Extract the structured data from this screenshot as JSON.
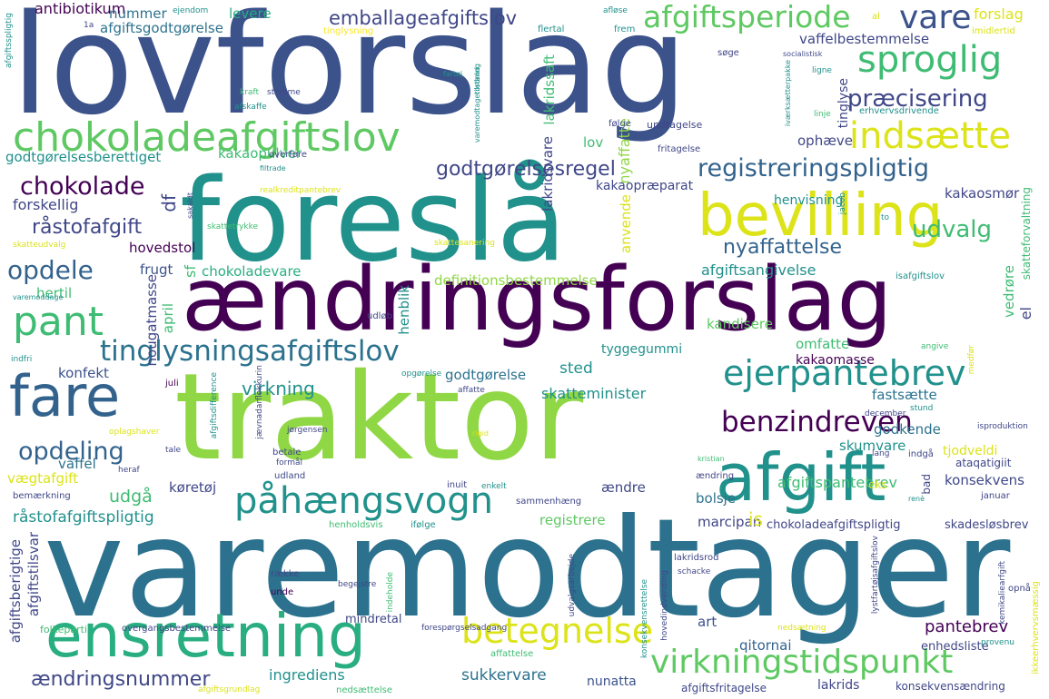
{
  "palette": {
    "dark_purple": "#440154",
    "indigo": "#3b528b",
    "navy": "#404788",
    "blue": "#33638d",
    "steel": "#2c728e",
    "teal": "#21918c",
    "sea": "#28ae80",
    "green": "#3fbc73",
    "light_green": "#5ec962",
    "lime": "#8fd744",
    "yellow_green": "#b8de29",
    "yellow": "#dce319",
    "bright_yellow": "#fde725"
  },
  "words": [
    {
      "text": "lovforslag",
      "color": "#3b528b"
    },
    {
      "text": "foreslå",
      "color": "#21918c"
    },
    {
      "text": "ændringsforslag",
      "color": "#440154"
    },
    {
      "text": "traktor",
      "color": "#8fd744"
    },
    {
      "text": "varemodtager",
      "color": "#2c728e"
    },
    {
      "text": "bevilling",
      "color": "#dce319"
    },
    {
      "text": "afgift",
      "color": "#21918c"
    },
    {
      "text": "ensretning",
      "color": "#28ae80"
    },
    {
      "text": "chokoladeafgiftslov",
      "color": "#5ec962"
    },
    {
      "text": "fare",
      "color": "#33638d"
    },
    {
      "text": "ejerpantebrev",
      "color": "#21918c"
    },
    {
      "text": "påhængsvogn",
      "color": "#21918c"
    },
    {
      "text": "betegnelse",
      "color": "#dce319"
    },
    {
      "text": "virkningstidspunkt",
      "color": "#5ec962"
    },
    {
      "text": "sproglig",
      "color": "#3fbc73"
    },
    {
      "text": "indsætte",
      "color": "#dce319"
    },
    {
      "text": "pant",
      "color": "#3fbc73"
    },
    {
      "text": "tinglysningsafgiftslov",
      "color": "#2c728e"
    },
    {
      "text": "benzindreven",
      "color": "#440154"
    },
    {
      "text": "vare",
      "color": "#3b528b"
    },
    {
      "text": "afgiftsperiode",
      "color": "#5ec962"
    },
    {
      "text": "registreringspligtig",
      "color": "#33638d"
    },
    {
      "text": "præcisering",
      "color": "#404788"
    },
    {
      "text": "emballageafgiftslov",
      "color": "#404788"
    },
    {
      "text": "opdele",
      "color": "#33638d"
    },
    {
      "text": "opdeling",
      "color": "#33638d"
    },
    {
      "text": "chokolade",
      "color": "#440154"
    },
    {
      "text": "godtgørelsesregel",
      "color": "#404788"
    },
    {
      "text": "udvalg",
      "color": "#3fbc73"
    },
    {
      "text": "ændringsnummer",
      "color": "#404788"
    },
    {
      "text": "nyaffattelse",
      "color": "#33638d"
    },
    {
      "text": "råstofafgift",
      "color": "#404788"
    },
    {
      "text": "forslag",
      "color": "#dce319"
    },
    {
      "text": "antibiotikum",
      "color": "#440154"
    },
    {
      "text": "nummer",
      "color": "#2c728e"
    },
    {
      "text": "afgiftsgodtgørelse",
      "color": "#2c728e"
    },
    {
      "text": "levere",
      "color": "#28ae80"
    },
    {
      "text": "vaffelbestemmelse",
      "color": "#404788"
    },
    {
      "text": "godtgørelsesberettiget",
      "color": "#21918c"
    },
    {
      "text": "kakaopulver",
      "color": "#3fbc73"
    },
    {
      "text": "forskellig",
      "color": "#404788"
    },
    {
      "text": "hovedstol",
      "color": "#440154"
    },
    {
      "text": "kakaopræparat",
      "color": "#404788"
    },
    {
      "text": "henvisning",
      "color": "#21918c"
    },
    {
      "text": "kakaosmør",
      "color": "#404788"
    },
    {
      "text": "afgiftsangivelse",
      "color": "#21918c"
    },
    {
      "text": "chokoladevare",
      "color": "#28ae80"
    },
    {
      "text": "definitionsbestemmelse",
      "color": "#8fd744"
    },
    {
      "text": "hertil",
      "color": "#3fbc73"
    },
    {
      "text": "frugt",
      "color": "#3b528b"
    },
    {
      "text": "kandisere",
      "color": "#5ec962"
    },
    {
      "text": "omfatte",
      "color": "#3fbc73"
    },
    {
      "text": "kakaomasse",
      "color": "#440154"
    },
    {
      "text": "konfekt",
      "color": "#3b528b"
    },
    {
      "text": "virkning",
      "color": "#21918c"
    },
    {
      "text": "sted",
      "color": "#21918c"
    },
    {
      "text": "skatteminister",
      "color": "#21918c"
    },
    {
      "text": "godtgørelse",
      "color": "#2c728e"
    },
    {
      "text": "tyggegummi",
      "color": "#21918c"
    },
    {
      "text": "fastsætte",
      "color": "#2c728e"
    },
    {
      "text": "godkende",
      "color": "#2c728e"
    },
    {
      "text": "tjodveldi",
      "color": "#dce319"
    },
    {
      "text": "vaffel",
      "color": "#2c728e"
    },
    {
      "text": "vægtafgift",
      "color": "#dce319"
    },
    {
      "text": "udgå",
      "color": "#3fbc73"
    },
    {
      "text": "køretøj",
      "color": "#404788"
    },
    {
      "text": "ændre",
      "color": "#404788"
    },
    {
      "text": "afgiftspantebrev",
      "color": "#3fbc73"
    },
    {
      "text": "bolsje",
      "color": "#2c728e"
    },
    {
      "text": "konsekvens",
      "color": "#404788"
    },
    {
      "text": "skumvare",
      "color": "#21918c"
    },
    {
      "text": "registrere",
      "color": "#5ec962"
    },
    {
      "text": "marcipan",
      "color": "#404788"
    },
    {
      "text": "chokoladeafgiftspligtig",
      "color": "#404788"
    },
    {
      "text": "skadesløsbrev",
      "color": "#404788"
    },
    {
      "text": "råstofafgiftspligtig",
      "color": "#21918c"
    },
    {
      "text": "is",
      "color": "#dce319"
    },
    {
      "text": "pantebrev",
      "color": "#440154"
    },
    {
      "text": "art",
      "color": "#3b528b"
    },
    {
      "text": "qitornai",
      "color": "#33638d"
    },
    {
      "text": "enhedsliste",
      "color": "#404788"
    },
    {
      "text": "sukkervare",
      "color": "#2c728e"
    },
    {
      "text": "nunatta",
      "color": "#3b528b"
    },
    {
      "text": "ingrediens",
      "color": "#21918c"
    },
    {
      "text": "lakrids",
      "color": "#404788"
    },
    {
      "text": "konsekvensændring",
      "color": "#404788"
    },
    {
      "text": "afgiftsfritagelse",
      "color": "#404788"
    },
    {
      "text": "mindretal",
      "color": "#404788"
    },
    {
      "text": "lov",
      "color": "#3fbc73"
    },
    {
      "text": "ophæve",
      "color": "#404788"
    },
    {
      "text": "lakridsvare",
      "color": "#404788"
    },
    {
      "text": "nyaffatte",
      "color": "#8fd744"
    },
    {
      "text": "lakridssaft",
      "color": "#3fbc73"
    },
    {
      "text": "tinglyse",
      "color": "#404788"
    },
    {
      "text": "anvende",
      "color": "#dce319"
    },
    {
      "text": "henblik",
      "color": "#21918c"
    },
    {
      "text": "nougatmasse",
      "color": "#404788"
    },
    {
      "text": "april",
      "color": "#3fbc73"
    },
    {
      "text": "df",
      "color": "#404788"
    },
    {
      "text": "sf",
      "color": "#3fbc73"
    },
    {
      "text": "afgiftstilsvar",
      "color": "#404788"
    },
    {
      "text": "afgiftsberigtige",
      "color": "#404788"
    },
    {
      "text": "vedrøre",
      "color": "#3fbc73"
    },
    {
      "text": "el",
      "color": "#404788"
    },
    {
      "text": "skatteforvaltning",
      "color": "#3fbc73"
    },
    {
      "text": "ejendom",
      "color": "#21918c"
    },
    {
      "text": "afløse",
      "color": "#21918c"
    },
    {
      "text": "al",
      "color": "#dce319"
    },
    {
      "text": "imidlertid",
      "color": "#dce319"
    },
    {
      "text": "tinglysning",
      "color": "#fde725"
    },
    {
      "text": "flertal",
      "color": "#21918c"
    },
    {
      "text": "frem",
      "color": "#21918c"
    },
    {
      "text": "søge",
      "color": "#404788"
    },
    {
      "text": "socialistisk",
      "color": "#404788"
    },
    {
      "text": "ligne",
      "color": "#21918c"
    },
    {
      "text": "kraft",
      "color": "#3fbc73"
    },
    {
      "text": "stemme",
      "color": "#404788"
    },
    {
      "text": "afskaffe",
      "color": "#21918c"
    },
    {
      "text": "følge",
      "color": "#404788"
    },
    {
      "text": "undtagelse",
      "color": "#404788"
    },
    {
      "text": "erhvervsdrivende",
      "color": "#21918c"
    },
    {
      "text": "linje",
      "color": "#3fbc73"
    },
    {
      "text": "fritagelse",
      "color": "#404788"
    },
    {
      "text": "overføre",
      "color": "#404788"
    },
    {
      "text": "filtrade",
      "color": "#21918c"
    },
    {
      "text": "realkreditpantebrev",
      "color": "#dce319"
    },
    {
      "text": "sakaldt",
      "color": "#404788"
    },
    {
      "text": "skattetrykke",
      "color": "#404788"
    },
    {
      "text": "fremgå",
      "color": "#3fbc73"
    },
    {
      "text": "skattesager",
      "color": "#404788"
    },
    {
      "text": "skattesanering",
      "color": "#dce319"
    },
    {
      "text": "skatteudvalg",
      "color": "#dce319"
    },
    {
      "text": "jacob",
      "color": "#21918c"
    },
    {
      "text": "to",
      "color": "#21918c"
    },
    {
      "text": "indfri",
      "color": "#21918c"
    },
    {
      "text": "juli",
      "color": "#440154"
    },
    {
      "text": "satsg",
      "color": "#404788"
    },
    {
      "text": "isafgiftslov",
      "color": "#21918c"
    },
    {
      "text": "udløb",
      "color": "#404788"
    },
    {
      "text": "angive",
      "color": "#3fbc73"
    },
    {
      "text": "medfør",
      "color": "#dce319"
    },
    {
      "text": "stund",
      "color": "#21918c"
    },
    {
      "text": "december",
      "color": "#404788"
    },
    {
      "text": "isproduktion",
      "color": "#404788"
    },
    {
      "text": "lang",
      "color": "#404788"
    },
    {
      "text": "indgå",
      "color": "#404788"
    },
    {
      "text": "ataqatigiit",
      "color": "#404788"
    },
    {
      "text": "bad",
      "color": "#404788"
    },
    {
      "text": "januar",
      "color": "#404788"
    },
    {
      "text": "renè",
      "color": "#21918c"
    },
    {
      "text": "eks",
      "color": "#dce319"
    },
    {
      "text": "ændring",
      "color": "#404788"
    },
    {
      "text": "kristian",
      "color": "#3fbc73"
    },
    {
      "text": "opgørelse",
      "color": "#21918c"
    },
    {
      "text": "affatte",
      "color": "#404788"
    },
    {
      "text": "rigid",
      "color": "#dce319"
    },
    {
      "text": "jørgensen",
      "color": "#404788"
    },
    {
      "text": "oplagshaver",
      "color": "#dce319"
    },
    {
      "text": "tale",
      "color": "#404788"
    },
    {
      "text": "heraf",
      "color": "#404788"
    },
    {
      "text": "betale",
      "color": "#404788"
    },
    {
      "text": "formål",
      "color": "#404788"
    },
    {
      "text": "udland",
      "color": "#404788"
    },
    {
      "text": "inuit",
      "color": "#404788"
    },
    {
      "text": "enkelt",
      "color": "#21918c"
    },
    {
      "text": "sammenhæng",
      "color": "#404788"
    },
    {
      "text": "ifølge",
      "color": "#21918c"
    },
    {
      "text": "henholdsvis",
      "color": "#3fbc73"
    },
    {
      "text": "bemærkning",
      "color": "#404788"
    },
    {
      "text": "række",
      "color": "#404788"
    },
    {
      "text": "unde",
      "color": "#440154"
    },
    {
      "text": "begejstre",
      "color": "#404788"
    },
    {
      "text": "lakridsrod",
      "color": "#404788"
    },
    {
      "text": "schacke",
      "color": "#404788"
    },
    {
      "text": "opnå",
      "color": "#404788"
    },
    {
      "text": "folkeparti",
      "color": "#3fbc73"
    },
    {
      "text": "overgangsbestemmelse",
      "color": "#404788"
    },
    {
      "text": "forespørgselsadgang",
      "color": "#404788"
    },
    {
      "text": "affattelse",
      "color": "#3fbc73"
    },
    {
      "text": "nedsætning",
      "color": "#dce319"
    },
    {
      "text": "provenu",
      "color": "#21918c"
    },
    {
      "text": "nedsættelse",
      "color": "#3fbc73"
    },
    {
      "text": "afgiftsgrundlag",
      "color": "#dce319"
    },
    {
      "text": "afgiftsspligtig",
      "color": "#21918c"
    },
    {
      "text": "fartøj",
      "color": "#21918c"
    },
    {
      "text": "varemodtagerordning",
      "color": "#21918c"
    },
    {
      "text": "indeholde",
      "color": "#3fbc73"
    },
    {
      "text": "konsekvensrettelse",
      "color": "#21918c"
    },
    {
      "text": "hovedindvending",
      "color": "#404788"
    },
    {
      "text": "kemikaliearfgift",
      "color": "#404788"
    },
    {
      "text": "ikkeerhvervsmæssig",
      "color": "#dce319"
    },
    {
      "text": "lystfartøjsafgiftslov",
      "color": "#404788"
    },
    {
      "text": "afgiftsdifference",
      "color": "#21918c"
    },
    {
      "text": "udvalgsarbejde",
      "color": "#404788"
    },
    {
      "text": "jævnadarflokkurin",
      "color": "#404788"
    },
    {
      "text": "hav",
      "color": "#404788"
    },
    {
      "text": "1a",
      "color": "#21918c"
    },
    {
      "text": "varemoddage",
      "color": "#21918c"
    },
    {
      "text": "tilstand",
      "color": "#dce319"
    },
    {
      "text": "iværksætterpakke",
      "color": "#21918c"
    },
    {
      "text": "afgiftsfritagelse2",
      "color": "#404788"
    }
  ]
}
